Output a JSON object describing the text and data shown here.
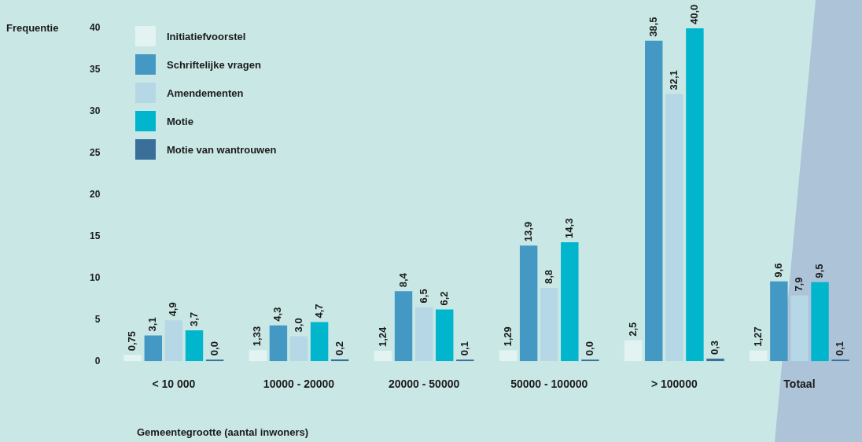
{
  "chart_data": {
    "type": "bar",
    "xlabel": "Gemeentegrootte (aantal inwoners)",
    "ylabel": "Frequentie",
    "categories": [
      "< 10 000",
      "10000 - 20000",
      "20000 - 50000",
      "50000 - 100000",
      "> 100000",
      "Totaal"
    ],
    "series": [
      {
        "name": "Initiatiefvoorstel",
        "color": "#e3f3f2",
        "values": [
          0.75,
          1.33,
          1.24,
          1.29,
          2.5,
          1.27
        ],
        "value_labels": [
          "0,75",
          "1,33",
          "1,24",
          "1,29",
          "2,5",
          "1,27"
        ]
      },
      {
        "name": "Schriftelijke vragen",
        "color": "#4499c4",
        "values": [
          3.1,
          4.3,
          8.4,
          13.9,
          38.5,
          9.6
        ],
        "value_labels": [
          "3,1",
          "4,3",
          "8,4",
          "13,9",
          "38,5",
          "9,6"
        ]
      },
      {
        "name": "Amendementen",
        "color": "#b5d7e6",
        "values": [
          4.9,
          3.0,
          6.5,
          8.8,
          32.1,
          7.9
        ],
        "value_labels": [
          "4,9",
          "3,0",
          "6,5",
          "8,8",
          "32,1",
          "7,9"
        ]
      },
      {
        "name": "Motie",
        "color": "#00b5cc",
        "values": [
          3.7,
          4.7,
          6.2,
          14.3,
          40.0,
          9.5
        ],
        "value_labels": [
          "3,7",
          "4,7",
          "6,2",
          "14,3",
          "40,0",
          "9,5"
        ]
      },
      {
        "name": "Motie van wantrouwen",
        "color": "#3a6f99",
        "values": [
          0.0,
          0.2,
          0.1,
          0.0,
          0.3,
          0.1
        ],
        "value_labels": [
          "0,0",
          "0,2",
          "0,1",
          "0,0",
          "0,3",
          "0,1"
        ]
      }
    ],
    "ylim": [
      0,
      40
    ],
    "yticks": [
      0,
      5,
      10,
      15,
      20,
      25,
      30,
      35,
      40
    ],
    "grid": false,
    "legend": "top left"
  }
}
